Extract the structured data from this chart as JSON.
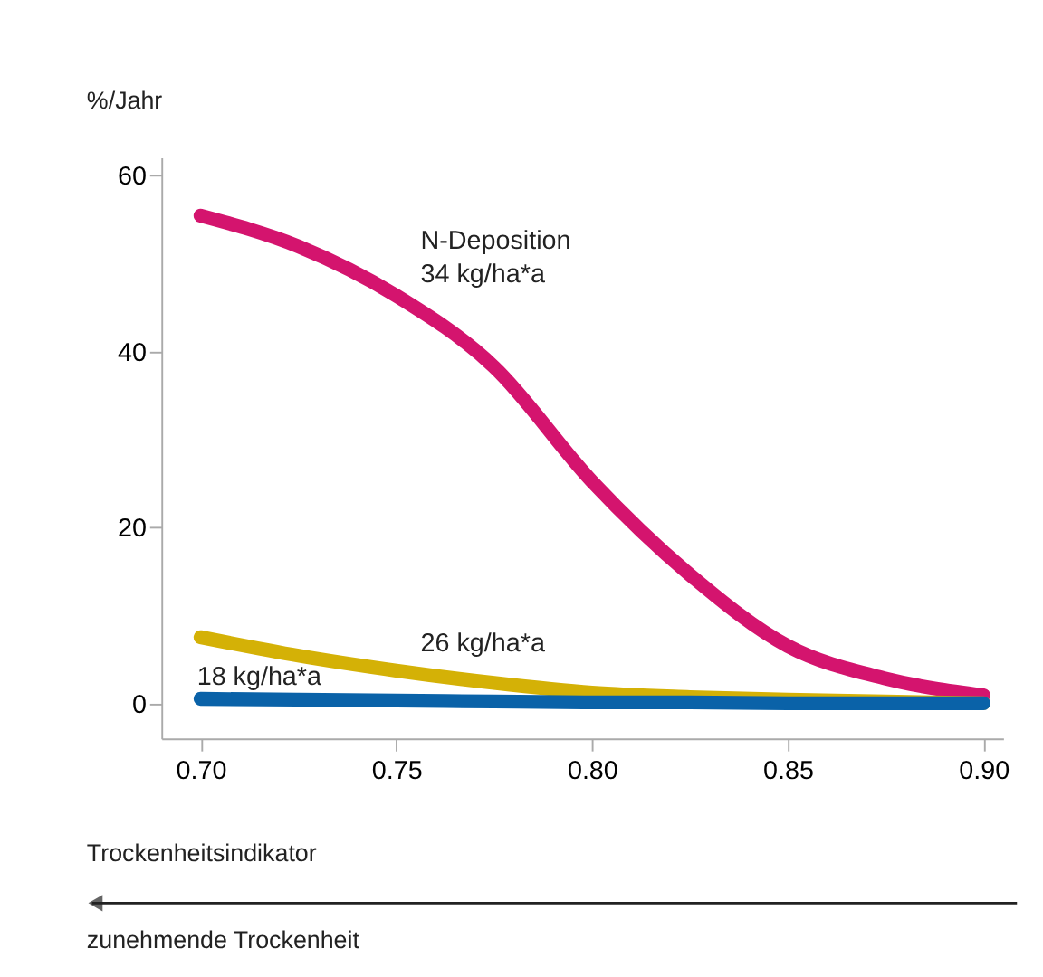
{
  "chart_data": {
    "type": "line",
    "ylabel": "%/Jahr",
    "xlabel": "Trockenheitsindikator",
    "x": [
      0.7,
      0.725,
      0.75,
      0.775,
      0.8,
      0.825,
      0.85,
      0.875,
      0.9
    ],
    "series": [
      {
        "name": "N-Deposition\n34 kg/ha*a",
        "color": "#d4146e",
        "values": [
          55.4,
          51.9,
          46.3,
          38.2,
          25.2,
          14.6,
          6.5,
          2.8,
          0.9
        ]
      },
      {
        "name": "26 kg/ha*a",
        "color": "#d4b106",
        "values": [
          7.5,
          5.4,
          3.7,
          2.3,
          1.2,
          0.7,
          0.4,
          0.2,
          0
        ]
      },
      {
        "name": "18 kg/ha*a",
        "color": "#0a62a8",
        "values": [
          0.5,
          0.4,
          0.3,
          0.2,
          0.1,
          0.1,
          0,
          0,
          0
        ]
      }
    ],
    "xlim": [
      0.69,
      0.905
    ],
    "xticks": [
      {
        "value": 0.7,
        "label": "0.70"
      },
      {
        "value": 0.75,
        "label": "0.75"
      },
      {
        "value": 0.8,
        "label": "0.80"
      },
      {
        "value": 0.85,
        "label": "0.85"
      },
      {
        "value": 0.9,
        "label": "0.90"
      }
    ],
    "ylim": [
      -4,
      62
    ],
    "yticks": [
      0,
      20,
      40,
      60
    ],
    "grid": false,
    "line_style": "solid",
    "annotations": [
      "zunehmende Trockenheit"
    ]
  }
}
